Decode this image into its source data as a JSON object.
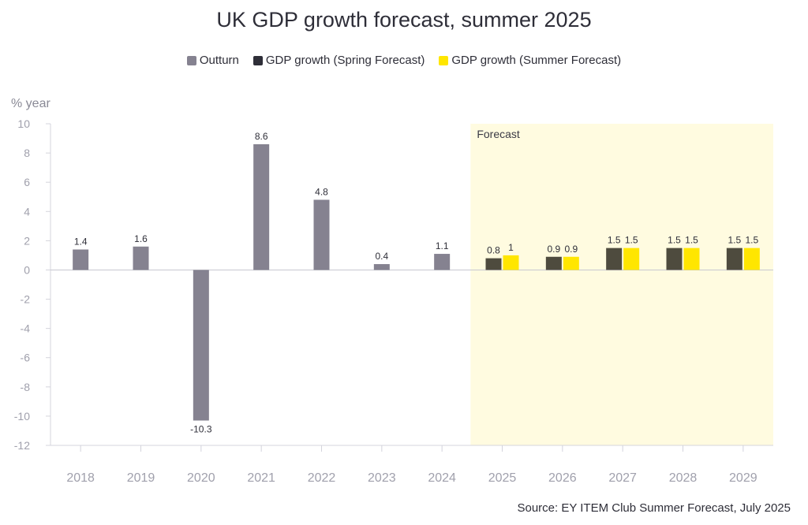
{
  "chart_data": {
    "type": "bar",
    "title": "UK GDP growth forecast, summer 2025",
    "ylabel": "% year",
    "xlabel": "",
    "ylim": [
      -12,
      10
    ],
    "yticks": [
      10,
      8,
      6,
      4,
      2,
      0,
      -2,
      -4,
      -6,
      -8,
      -10,
      -12
    ],
    "categories": [
      "2018",
      "2019",
      "2020",
      "2021",
      "2022",
      "2023",
      "2024",
      "2025",
      "2026",
      "2027",
      "2028",
      "2029"
    ],
    "series": [
      {
        "name": "Outturn",
        "color": "#858290",
        "values": [
          1.4,
          1.6,
          -10.3,
          8.6,
          4.8,
          0.4,
          1.1,
          null,
          null,
          null,
          null,
          null
        ],
        "labels": [
          "1.4",
          "1.6",
          "-10.3",
          "8.6",
          "4.8",
          "0.4",
          "1.1",
          null,
          null,
          null,
          null,
          null
        ]
      },
      {
        "name": "GDP growth (Spring Forecast)",
        "color": "#4e4b3e",
        "legend_color": "#2e2e38",
        "values": [
          null,
          null,
          null,
          null,
          null,
          null,
          null,
          0.8,
          0.9,
          1.5,
          1.5,
          1.5
        ],
        "labels": [
          null,
          null,
          null,
          null,
          null,
          null,
          null,
          "0.8",
          "0.9",
          "1.5",
          "1.5",
          "1.5"
        ]
      },
      {
        "name": "GDP growth (Summer Forecast)",
        "color": "#ffe600",
        "values": [
          null,
          null,
          null,
          null,
          null,
          null,
          null,
          1.0,
          0.9,
          1.5,
          1.5,
          1.5
        ],
        "labels": [
          null,
          null,
          null,
          null,
          null,
          null,
          null,
          "1",
          "0.9",
          "1.5",
          "1.5",
          "1.5"
        ]
      }
    ],
    "forecast_region": {
      "label": "Forecast",
      "from_category": "2025",
      "to_category": "2029",
      "color": "#fffbe0"
    },
    "grid": false,
    "legend_position": "top-center"
  },
  "source": "Source: EY ITEM Club Summer Forecast, July 2025"
}
